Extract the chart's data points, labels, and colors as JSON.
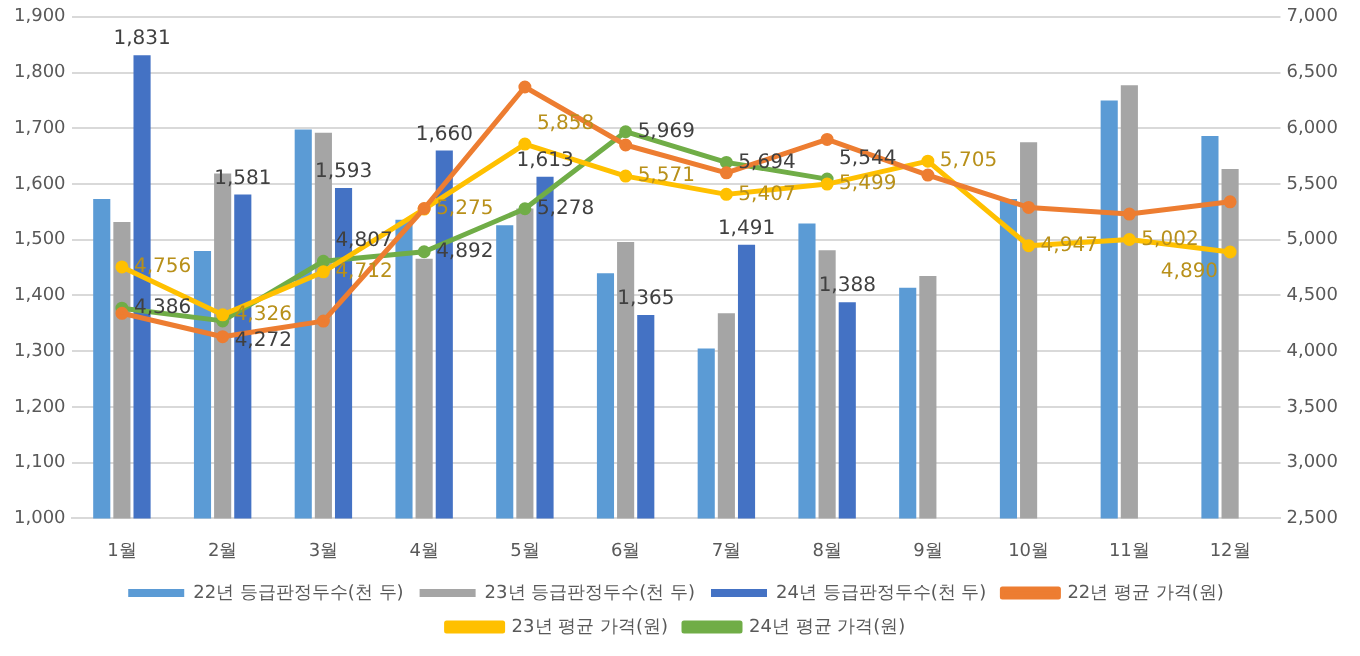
{
  "chart_data": {
    "type": "bar",
    "categories": [
      "1월",
      "2월",
      "3월",
      "4월",
      "5월",
      "6월",
      "7월",
      "8월",
      "9월",
      "10월",
      "11월",
      "12월"
    ],
    "ylim": [
      1000,
      1900
    ],
    "yticks": [
      {
        "value": 1000,
        "label": "1,000"
      },
      {
        "value": 1100,
        "label": "1,100"
      },
      {
        "value": 1200,
        "label": "1,200"
      },
      {
        "value": 1300,
        "label": "1,300"
      },
      {
        "value": 1400,
        "label": "1,400"
      },
      {
        "value": 1500,
        "label": "1,500"
      },
      {
        "value": 1600,
        "label": "1,600"
      },
      {
        "value": 1700,
        "label": "1,700"
      },
      {
        "value": 1800,
        "label": "1,800"
      },
      {
        "value": 1900,
        "label": "1,900"
      }
    ],
    "y2lim": [
      2500,
      7000
    ],
    "y2ticks": [
      {
        "value": 2500,
        "label": "2,500"
      },
      {
        "value": 3000,
        "label": "3,000"
      },
      {
        "value": 3500,
        "label": "3,500"
      },
      {
        "value": 4000,
        "label": "4,000"
      },
      {
        "value": 4500,
        "label": "4,500"
      },
      {
        "value": 5000,
        "label": "5,000"
      },
      {
        "value": 5500,
        "label": "5,500"
      },
      {
        "value": 6000,
        "label": "6,000"
      },
      {
        "value": 6500,
        "label": "6,500"
      },
      {
        "value": 7000,
        "label": "7,000"
      }
    ],
    "grid": "y",
    "legend": "bottom",
    "marker": "circle",
    "line_style": "solid",
    "series": [
      {
        "name": "22년 등급판정두수(천 두)",
        "color": "#5b9bd5",
        "values": [
          1573,
          1480,
          1698,
          1536,
          1526,
          1440,
          1305,
          1529,
          1414,
          1573,
          1750,
          1686
        ]
      },
      {
        "name": "23년 등급판정두수(천 두)",
        "color": "#a5a5a5",
        "values": [
          1532,
          1619,
          1692,
          1466,
          1556,
          1496,
          1368,
          1481,
          1435,
          1675,
          1777,
          1627
        ]
      },
      {
        "name": "24년 등급판정두수(천 두)",
        "color": "#4472c4",
        "values": [
          1831,
          1581,
          1593,
          1660,
          1613,
          1365,
          1491,
          1388,
          null,
          null,
          null,
          null
        ],
        "value_labels": [
          "1,831",
          "1,581",
          "1,593",
          "1,660",
          "1,613",
          "1,365",
          "1,491",
          "1,388",
          null,
          null,
          null,
          null
        ]
      },
      {
        "name": "22년 평균 가격(원)",
        "type": "line",
        "axis": "y2",
        "color": "#ed7d31",
        "values": [
          4340,
          4130,
          4270,
          5280,
          6370,
          5850,
          5600,
          5900,
          5580,
          5290,
          5230,
          5340
        ]
      },
      {
        "name": "23년 평균 가격(원)",
        "type": "line",
        "axis": "y2",
        "color": "#ffc000",
        "values": [
          4756,
          4326,
          4712,
          5275,
          5858,
          5571,
          5407,
          5499,
          5705,
          4947,
          5002,
          4890
        ],
        "value_labels": [
          "4,756",
          "4,326",
          "4,712",
          "5,275",
          "5,858",
          "5,571",
          "5,407",
          "5,499",
          "5,705",
          "4,947",
          "5,002",
          "4,890"
        ]
      },
      {
        "name": "24년 평균 가격(원)",
        "type": "line",
        "axis": "y2",
        "color": "#70ad47",
        "values": [
          4386,
          4272,
          4807,
          4892,
          5278,
          5969,
          5694,
          5544,
          null,
          null,
          null,
          null
        ],
        "value_labels": [
          "4,386",
          "4,272",
          "4,807",
          "4,892",
          "5,278",
          "5,969",
          "5,694",
          "5,544",
          null,
          null,
          null,
          null
        ]
      }
    ]
  }
}
